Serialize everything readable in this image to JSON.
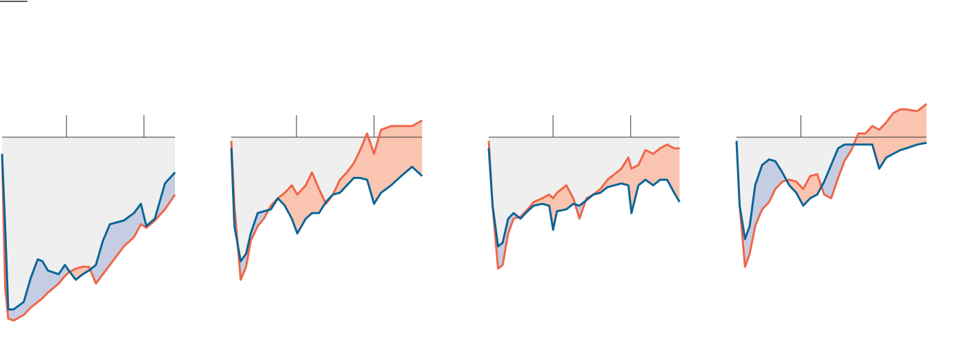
{
  "chart_data": [
    {
      "type": "line",
      "background": "#efefef",
      "xlim": [
        0,
        223
      ],
      "xticks": [
        83,
        183
      ],
      "ylim": [
        -100,
        20
      ],
      "yticks": [
        0
      ],
      "x": [
        0,
        4,
        8,
        15,
        28,
        37,
        46,
        52,
        59,
        73,
        81,
        86,
        95,
        104,
        112,
        121,
        130,
        139,
        157,
        170,
        179,
        186,
        197,
        210,
        223
      ],
      "series": [
        {
          "color": "#0a6496",
          "fill": "#c5cde3",
          "values": [
            -9,
            -48,
            -93,
            -93,
            -89,
            -76,
            -66,
            -67,
            -72,
            -74,
            -69,
            -72,
            -77,
            -74,
            -72,
            -69,
            -56,
            -47,
            -45,
            -41,
            -36,
            -48,
            -44,
            -25,
            -19
          ]
        },
        {
          "color": "#ef6548",
          "fill": "#f9c4b0",
          "values": [
            -9,
            -81,
            -98,
            -99,
            -96,
            -92,
            -89,
            -87,
            -84,
            -79,
            -75,
            -73,
            -71,
            -70,
            -70,
            -79,
            -74,
            -69,
            -59,
            -54,
            -47,
            -49,
            -45,
            -39,
            -31
          ]
        }
      ]
    },
    {
      "type": "line",
      "background": "#efefef",
      "xlim": [
        0,
        246
      ],
      "xticks": [
        84,
        184
      ],
      "ylim": [
        -100,
        20
      ],
      "yticks": [
        0
      ],
      "x": [
        0,
        4,
        12,
        19,
        25,
        34,
        42,
        51,
        60,
        69,
        78,
        85,
        96,
        104,
        113,
        122,
        131,
        140,
        149,
        158,
        166,
        175,
        184,
        193,
        206,
        219,
        233,
        246
      ],
      "series": [
        {
          "color": "#0a6496",
          "fill": "#c5cde3",
          "values": [
            -6,
            -48,
            -67,
            -63,
            -52,
            -41,
            -40,
            -39,
            -33,
            -37,
            -44,
            -52,
            -44,
            -41,
            -41,
            -35,
            -31,
            -30,
            -26,
            -22,
            -22,
            -23,
            -36,
            -30,
            -26,
            -21,
            -16,
            -21
          ]
        },
        {
          "color": "#ef6548",
          "fill": "#f9c4b0",
          "values": [
            -2,
            -37,
            -77,
            -70,
            -56,
            -48,
            -44,
            -37,
            -33,
            -30,
            -26,
            -31,
            -26,
            -19,
            -28,
            -36,
            -31,
            -23,
            -19,
            -14,
            -7,
            2,
            -9,
            4,
            6,
            6,
            6,
            9
          ]
        }
      ]
    },
    {
      "type": "line",
      "background": "#efefef",
      "xlim": [
        0,
        246
      ],
      "xticks": [
        83,
        183
      ],
      "ylim": [
        -100,
        20
      ],
      "yticks": [
        0
      ],
      "x": [
        0,
        5,
        12,
        18,
        25,
        32,
        41,
        50,
        58,
        69,
        78,
        83,
        88,
        100,
        109,
        117,
        126,
        135,
        144,
        153,
        162,
        171,
        180,
        184,
        193,
        202,
        212,
        221,
        230,
        239,
        246
      ],
      "series": [
        {
          "color": "#0a6496",
          "fill": "#c5cde3",
          "values": [
            -6,
            -37,
            -59,
            -57,
            -44,
            -41,
            -44,
            -40,
            -37,
            -36,
            -37,
            -50,
            -40,
            -39,
            -36,
            -37,
            -34,
            -31,
            -30,
            -27,
            -26,
            -25,
            -26,
            -41,
            -26,
            -23,
            -26,
            -23,
            -23,
            -30,
            -35
          ]
        },
        {
          "color": "#ef6548",
          "fill": "#f9c4b0",
          "values": [
            -2,
            -37,
            -71,
            -69,
            -52,
            -44,
            -43,
            -39,
            -35,
            -33,
            -31,
            -33,
            -30,
            -26,
            -33,
            -44,
            -33,
            -31,
            -28,
            -23,
            -20,
            -17,
            -11,
            -17,
            -15,
            -7,
            -9,
            -6,
            -4,
            -6,
            -6
          ]
        }
      ]
    },
    {
      "type": "line",
      "background": "#efefef",
      "xlim": [
        0,
        245
      ],
      "xticks": [
        83
      ],
      "ylim": [
        -100,
        20
      ],
      "yticks": [
        0
      ],
      "x": [
        0,
        4,
        11,
        17,
        24,
        33,
        42,
        50,
        59,
        68,
        77,
        86,
        95,
        104,
        113,
        122,
        131,
        139,
        148,
        157,
        166,
        175,
        184,
        193,
        202,
        211,
        219,
        233,
        245
      ],
      "series": [
        {
          "color": "#0a6496",
          "fill": "#c5cde3",
          "values": [
            -2,
            -37,
            -55,
            -48,
            -26,
            -15,
            -12,
            -13,
            -19,
            -26,
            -30,
            -37,
            -33,
            -31,
            -24,
            -15,
            -6,
            -4,
            -4,
            -4,
            -4,
            -4,
            -17,
            -11,
            -9,
            -7,
            -6,
            -4,
            -3
          ]
        },
        {
          "color": "#ef6548",
          "fill": "#f9c4b0",
          "values": [
            -2,
            -37,
            -70,
            -63,
            -48,
            -39,
            -35,
            -28,
            -24,
            -23,
            -24,
            -28,
            -21,
            -20,
            -31,
            -33,
            -22,
            -13,
            -7,
            2,
            2,
            6,
            4,
            8,
            13,
            15,
            15,
            14,
            18
          ]
        }
      ]
    }
  ]
}
